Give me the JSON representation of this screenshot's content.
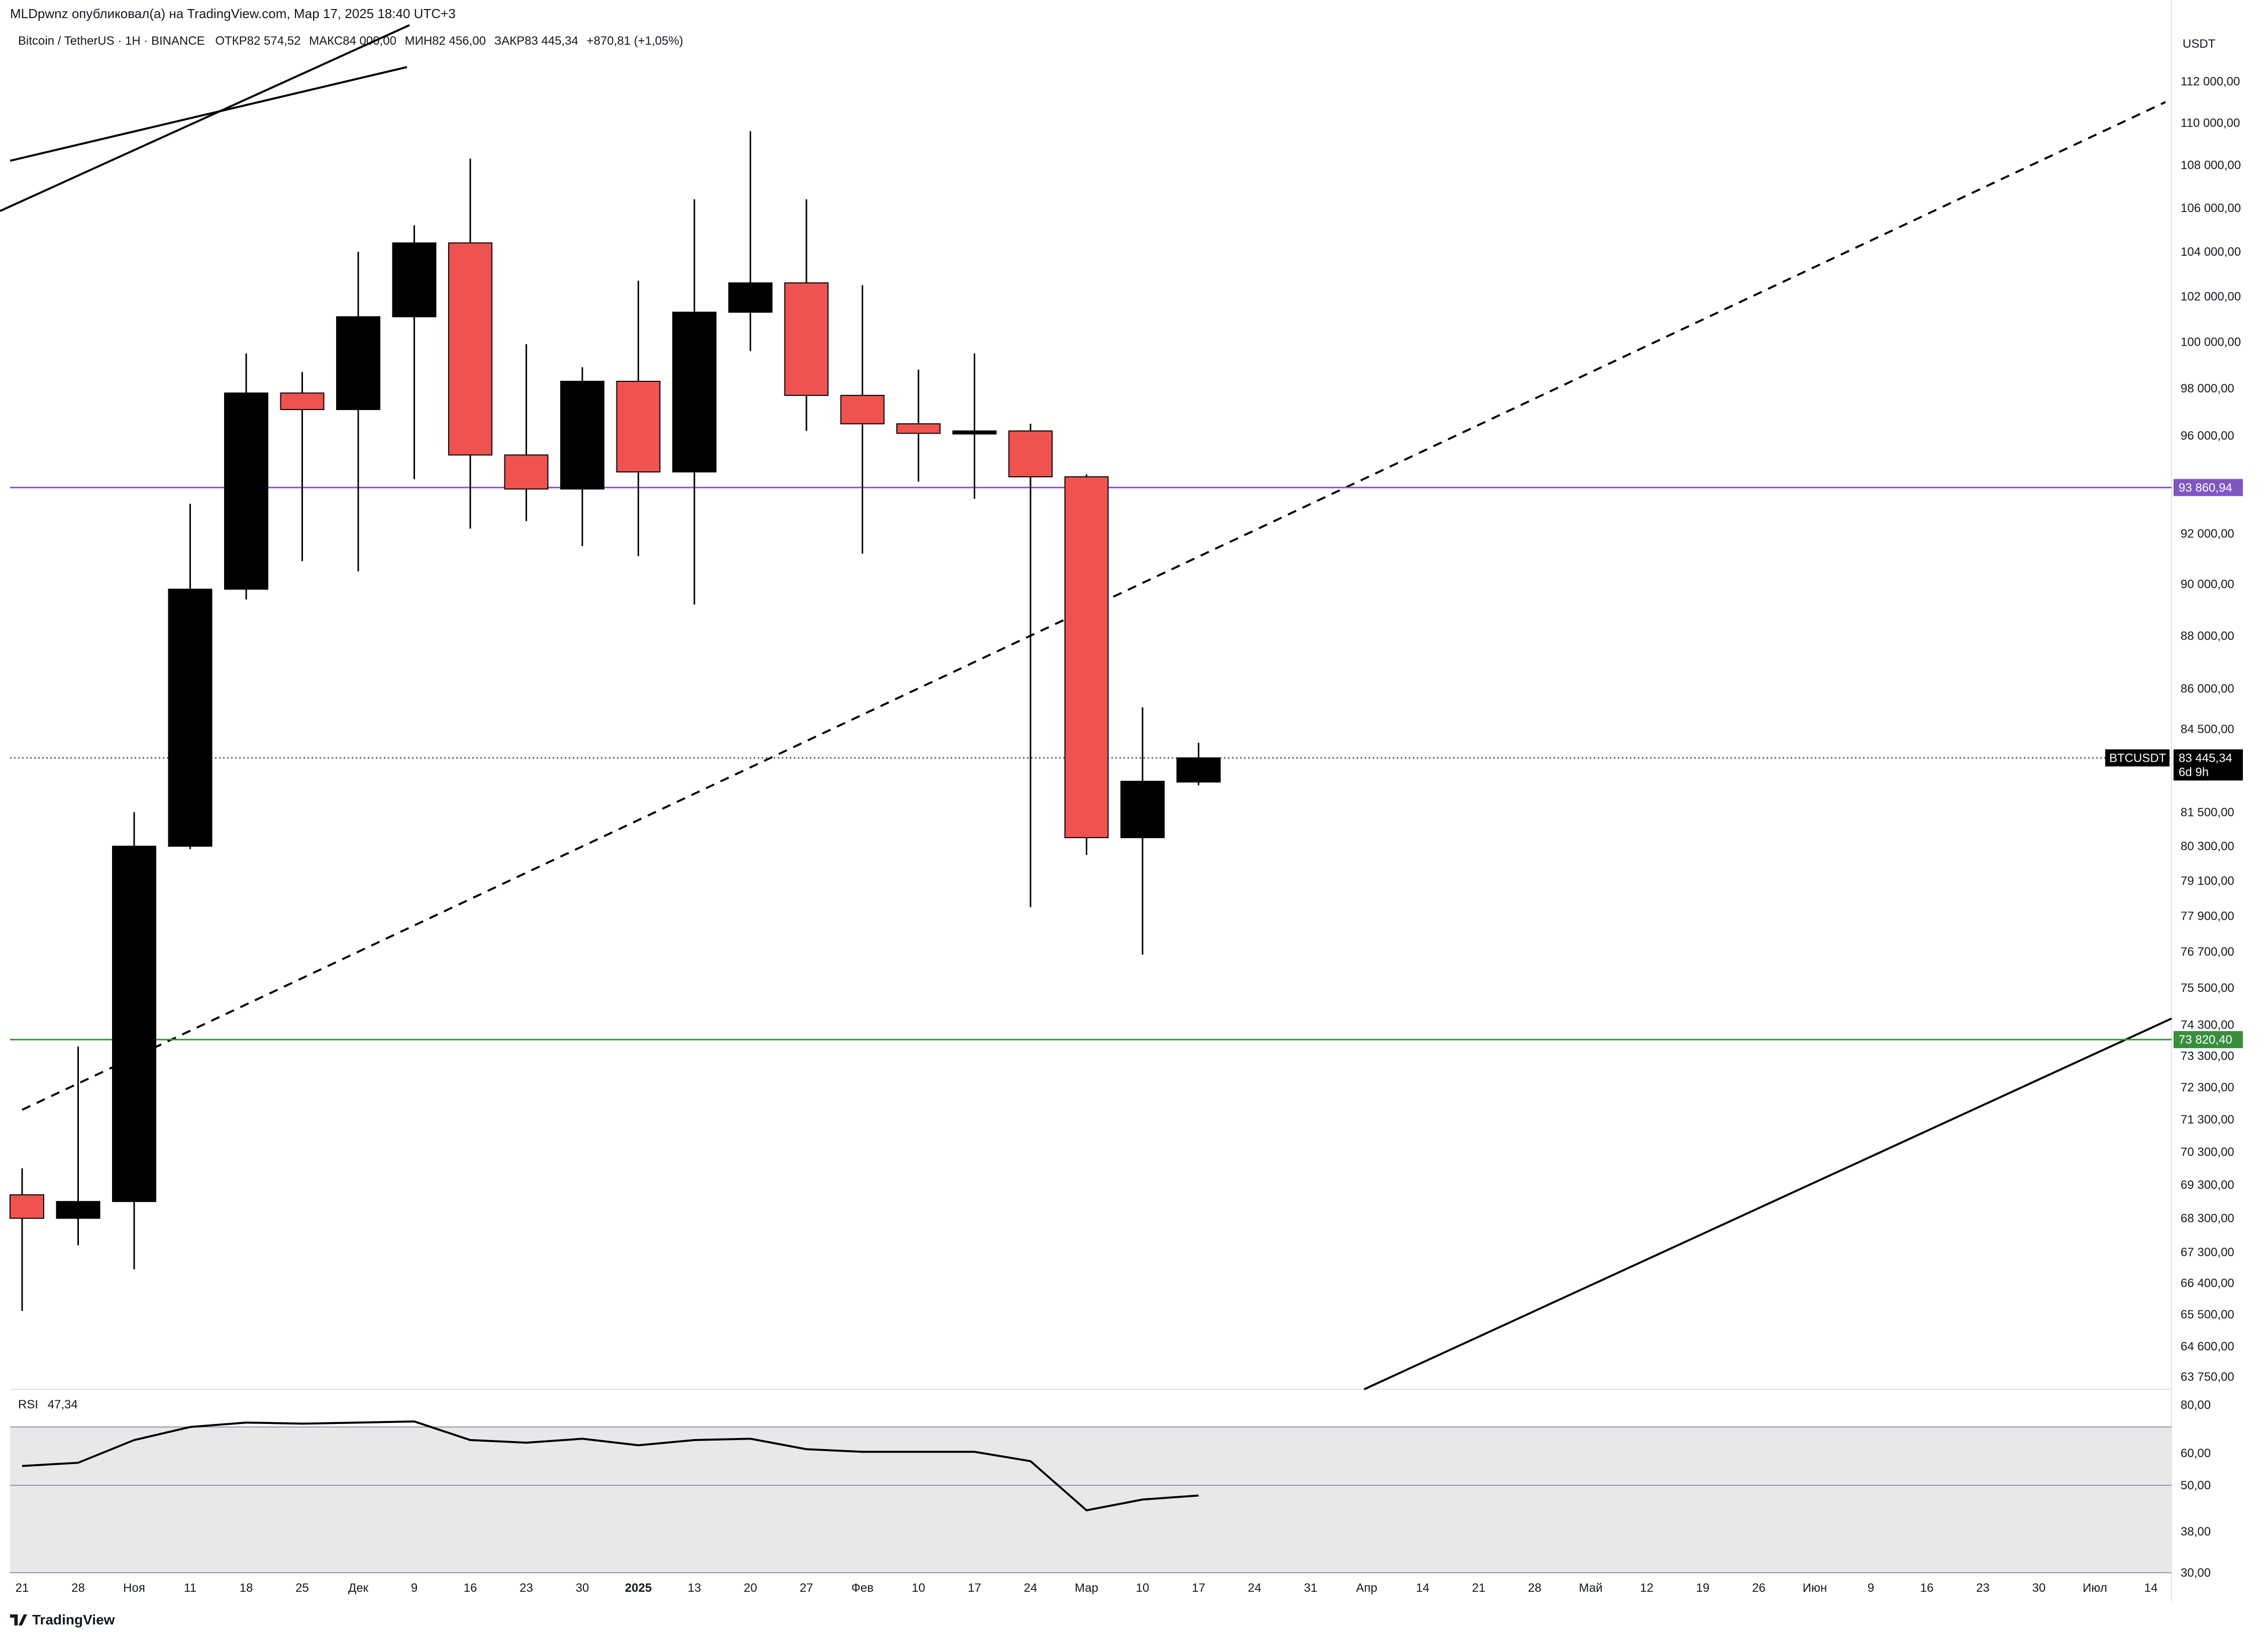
{
  "header": {
    "published": "MLDpwnz опубликовал(а) на TradingView.com, Мар 17, 2025 18:40 UTC+3"
  },
  "legend": {
    "symbol": "Bitcoin / TetherUS · 1Н · BINANCE",
    "open": "ОТКР82 574,52",
    "high": "МАКС84 000,00",
    "low": "МИН82 456,00",
    "close": "ЗАКР83 445,34",
    "change": "+870,81 (+1,05%)"
  },
  "price_axis": {
    "unit": "USDT",
    "ticks": [
      "112 000,00",
      "110 000,00",
      "108 000,00",
      "106 000,00",
      "104 000,00",
      "102 000,00",
      "100 000,00",
      "98 000,00",
      "96 000,00",
      "92 000,00",
      "90 000,00",
      "88 000,00",
      "86 000,00",
      "84 500,00",
      "81 500,00",
      "80 300,00",
      "79 100,00",
      "77 900,00",
      "76 700,00",
      "75 500,00",
      "74 300,00",
      "73 300,00",
      "72 300,00",
      "71 300,00",
      "70 300,00",
      "69 300,00",
      "68 300,00",
      "67 300,00",
      "66 400,00",
      "65 500,00",
      "64 600,00",
      "63 750,00"
    ]
  },
  "price_labels": {
    "purple": {
      "value": "93 860,94",
      "color": "#7e57c2"
    },
    "green": {
      "value": "73 820,40",
      "color": "#388e3c"
    },
    "current": {
      "symbol": "BTCUSDT",
      "value": "83 445,34",
      "countdown": "6d 9h"
    }
  },
  "rsi": {
    "label": "RSI",
    "value": "47,34",
    "ticks": [
      "80,00",
      "60,00",
      "50,00",
      "38,00",
      "30,00"
    ]
  },
  "time_axis": {
    "labels": [
      "21",
      "28",
      "Ноя",
      "11",
      "18",
      "25",
      "Дек",
      "9",
      "16",
      "23",
      "30",
      "2025",
      "13",
      "20",
      "27",
      "Фев",
      "10",
      "17",
      "24",
      "Мар",
      "10",
      "17",
      "24",
      "31",
      "Апр",
      "14",
      "21",
      "28",
      "Май",
      "12",
      "19",
      "26",
      "Июн",
      "9",
      "16",
      "23",
      "30",
      "Июл",
      "14"
    ]
  },
  "footer": {
    "brand": "TradingView"
  },
  "colors": {
    "bull": "#000000",
    "bear": "#ef5350",
    "purple_line": "#7e57c2",
    "green_line": "#388e3c",
    "rsi_band": "#e8e8ea"
  },
  "chart_data": {
    "type": "candlestick",
    "timeframe": "1W",
    "x": [
      "2024-10-21",
      "2024-10-28",
      "2024-11-04",
      "2024-11-11",
      "2024-11-18",
      "2024-11-25",
      "2024-12-02",
      "2024-12-09",
      "2024-12-16",
      "2024-12-23",
      "2024-12-30",
      "2025-01-06",
      "2025-01-13",
      "2025-01-20",
      "2025-01-27",
      "2025-02-03",
      "2025-02-10",
      "2025-02-17",
      "2025-02-24",
      "2025-03-03",
      "2025-03-10",
      "2025-03-17"
    ],
    "ohlc": [
      {
        "open": 69000,
        "high": 69800,
        "low": 65600,
        "close": 68300
      },
      {
        "open": 68300,
        "high": 73600,
        "low": 67500,
        "close": 68800
      },
      {
        "open": 68800,
        "high": 81500,
        "low": 66800,
        "close": 80300
      },
      {
        "open": 80300,
        "high": 93200,
        "low": 80200,
        "close": 89800
      },
      {
        "open": 89800,
        "high": 99500,
        "low": 89400,
        "close": 97800
      },
      {
        "open": 97800,
        "high": 98700,
        "low": 90900,
        "close": 97100
      },
      {
        "open": 97100,
        "high": 104000,
        "low": 90500,
        "close": 101100
      },
      {
        "open": 101100,
        "high": 105200,
        "low": 94200,
        "close": 104400
      },
      {
        "open": 104400,
        "high": 108300,
        "low": 92200,
        "close": 95200
      },
      {
        "open": 95200,
        "high": 99900,
        "low": 92500,
        "close": 93800
      },
      {
        "open": 93800,
        "high": 98900,
        "low": 91500,
        "close": 98300
      },
      {
        "open": 98300,
        "high": 102700,
        "low": 91100,
        "close": 94500
      },
      {
        "open": 94500,
        "high": 106400,
        "low": 89200,
        "close": 101300
      },
      {
        "open": 101300,
        "high": 109600,
        "low": 99600,
        "close": 102600
      },
      {
        "open": 102600,
        "high": 106400,
        "low": 96200,
        "close": 97700
      },
      {
        "open": 97700,
        "high": 102500,
        "low": 91200,
        "close": 96500
      },
      {
        "open": 96500,
        "high": 98800,
        "low": 94100,
        "close": 96100
      },
      {
        "open": 96100,
        "high": 99500,
        "low": 93400,
        "close": 96200
      },
      {
        "open": 96200,
        "high": 96500,
        "low": 78200,
        "close": 94300
      },
      {
        "open": 94300,
        "high": 94400,
        "low": 80000,
        "close": 80600
      },
      {
        "open": 80600,
        "high": 85300,
        "low": 76600,
        "close": 82600
      },
      {
        "open": 82574.52,
        "high": 84000,
        "low": 82456,
        "close": 83445.34
      }
    ],
    "rsi": [
      56,
      57,
      65,
      70,
      72,
      71.5,
      72,
      72.5,
      65,
      64,
      65.5,
      63,
      65,
      65.5,
      61.5,
      60.5,
      60.5,
      60.5,
      57.5,
      43.5,
      46.3,
      47.34
    ],
    "horizontal_lines": [
      93860.94,
      73820.4
    ],
    "rsi_band": [
      30,
      70
    ],
    "rsi_midline": 50
  }
}
